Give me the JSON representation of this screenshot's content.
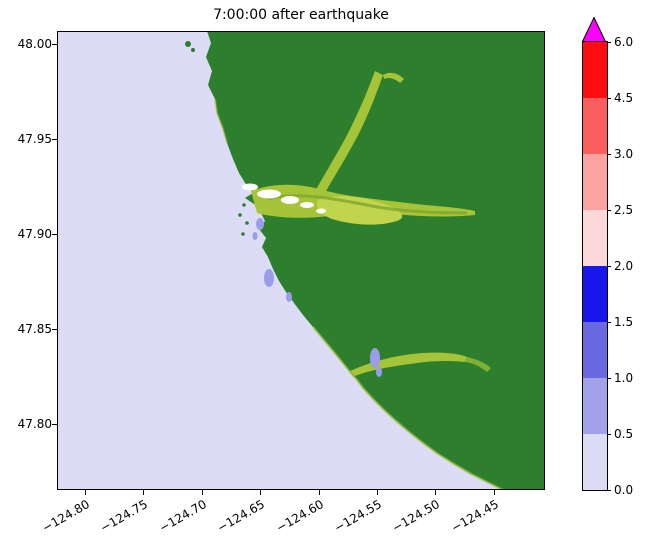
{
  "chart_data": {
    "type": "heatmap",
    "title": "7:00:00 after earthquake",
    "xlabel": "",
    "ylabel": "",
    "x_tick_labels": [
      "−124.80",
      "−124.75",
      "−124.70",
      "−124.65",
      "−124.60",
      "−124.55",
      "−124.50",
      "−124.45"
    ],
    "y_tick_labels": [
      "48.00",
      "47.95",
      "47.90",
      "47.85",
      "47.80"
    ],
    "x_range_lon": [
      -124.824,
      -124.406
    ],
    "y_range_lat": [
      47.765,
      48.007
    ],
    "grid": false,
    "legend": "none",
    "colorbar": {
      "orientation": "vertical",
      "levels": [
        0.0,
        0.5,
        1.0,
        1.5,
        2.0,
        2.5,
        3.0,
        4.5,
        6.0
      ],
      "tick_labels_top_to_bottom": [
        "6.0",
        "4.5",
        "3.0",
        "2.5",
        "2.0",
        "1.5",
        "1.0",
        "0.5",
        "0.0"
      ],
      "segment_colors_bottom_to_top": [
        "#dcdcf7",
        "#a2a2ea",
        "#6a6ae0",
        "#1717ec",
        "#fcd9d9",
        "#fba2a2",
        "#fc5e5e",
        "#fd0d0d"
      ],
      "over_color": "#ff00ff",
      "over_arrow": true
    },
    "map_features": [
      "ocean on west side shaded at lowest level (~0.0)",
      "green land mass occupying the east side with irregular coastline",
      "yellow-green inundated river valley near 47.91N extending inland to the east",
      "yellow-green tributary running northeast from the river valley",
      "yellow-green inundated river near 47.835N extending east from the coast",
      "small blue-purple inundated patches (~0.5-1.0) along the coastline",
      "white cells near the river mouth around -124.65, 47.91"
    ]
  },
  "colors": {
    "ocean": "#dcdcf7",
    "land": "#2d7e2d",
    "river": "#a5c438",
    "river_bright": "#c0d44e",
    "river_dark": "#7fa52f",
    "patch": "#9c9cea",
    "sandbar": "#ffffff",
    "axis": "#000000"
  }
}
